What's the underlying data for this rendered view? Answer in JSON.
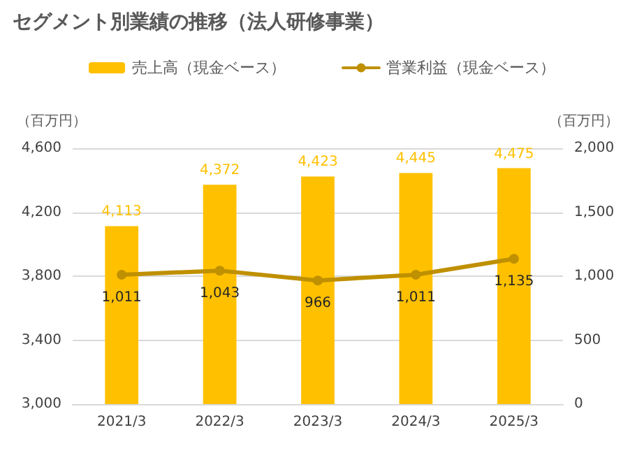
{
  "chart_data": {
    "type": "bar",
    "title": "セグメント別業績の推移（法人研修事業）",
    "ylabel": "（百万円）",
    "y2label": "（百万円）",
    "categories": [
      "2021/3",
      "2022/3",
      "2023/3",
      "2024/3",
      "2025/3"
    ],
    "series": [
      {
        "name": "売上高（現金ベース）",
        "color": "#ffc000",
        "values": [
          4113,
          4372,
          4423,
          4445,
          4475
        ],
        "value_labels": [
          "4,113",
          "4,372",
          "4,423",
          "4,445",
          "4,475"
        ]
      },
      {
        "name": "営業利益（現金ベース）",
        "type": "line",
        "axis": "y2",
        "color": "#bf9000",
        "values": [
          1011,
          1043,
          966,
          1011,
          1135
        ],
        "value_labels": [
          "1,011",
          "1,043",
          "966",
          "1,011",
          "1,135"
        ]
      }
    ],
    "ylim": [
      3000,
      4600
    ],
    "yticks": [
      {
        "value": 3000,
        "label": "3,000"
      },
      {
        "value": 3400,
        "label": "3,400"
      },
      {
        "value": 3800,
        "label": "3,800"
      },
      {
        "value": 4200,
        "label": "4,200"
      },
      {
        "value": 4600,
        "label": "4,600"
      }
    ],
    "y2lim": [
      0,
      2000
    ],
    "y2ticks": [
      0,
      500,
      {
        "value": 1000,
        "label": "1,000"
      },
      {
        "value": 1500,
        "label": "1,500"
      },
      {
        "value": 2000,
        "label": "2,000"
      }
    ],
    "grid": "y",
    "legend": "top",
    "marker": "circle",
    "line_style": "solid"
  }
}
